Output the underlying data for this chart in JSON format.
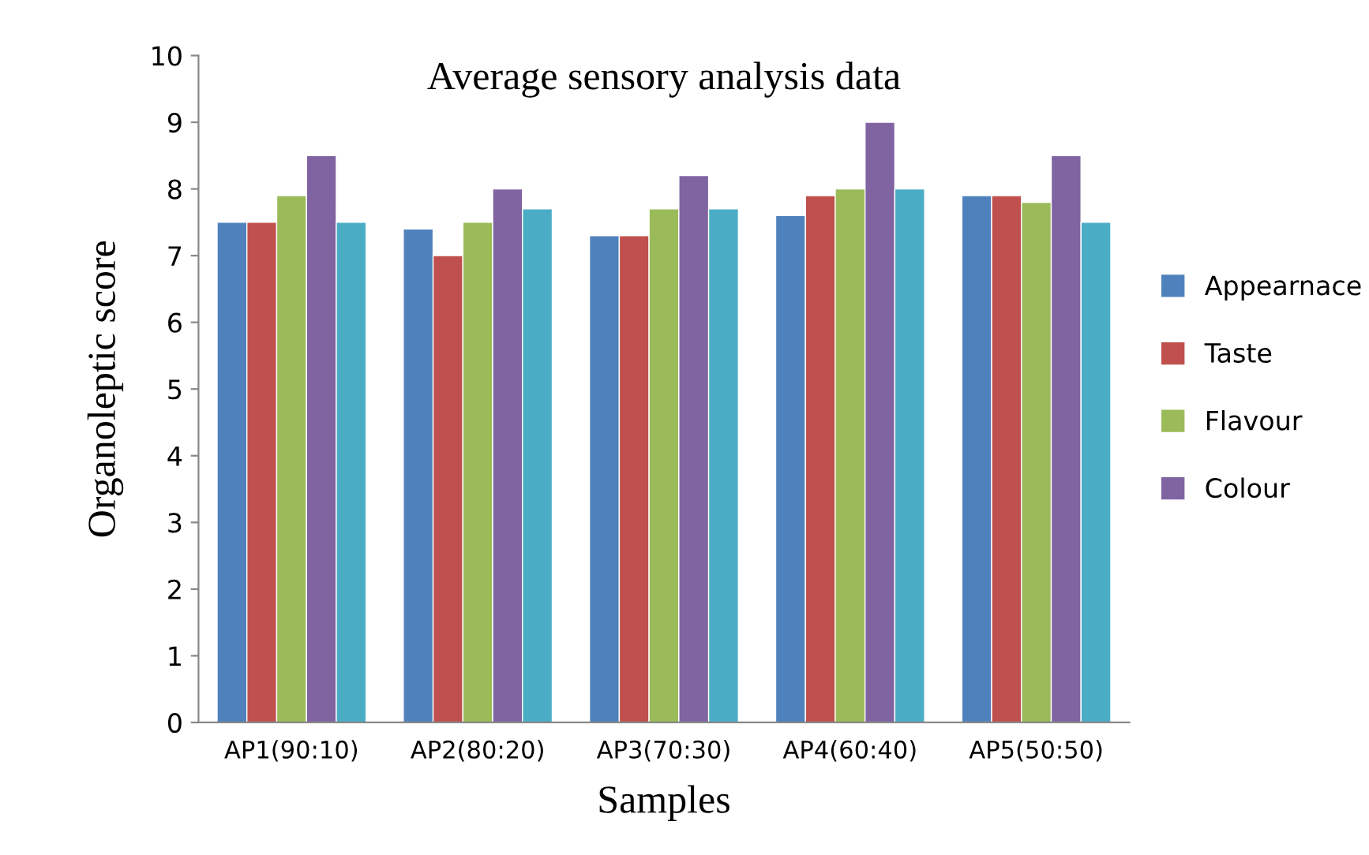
{
  "chart_data": {
    "type": "bar",
    "title": "Average sensory analysis data",
    "xlabel": "Samples",
    "ylabel": "Organoleptic score",
    "categories": [
      "AP1(90:10)",
      "AP2(80:20)",
      "AP3(70:30)",
      "AP4(60:40)",
      "AP5(50:50)"
    ],
    "series": [
      {
        "name": "Appearnace",
        "color": "#4f81bd",
        "values": [
          7.5,
          7.4,
          7.3,
          7.6,
          7.9
        ]
      },
      {
        "name": "Taste",
        "color": "#c0504d",
        "values": [
          7.5,
          7.0,
          7.3,
          7.9,
          7.9
        ]
      },
      {
        "name": "Flavour",
        "color": "#9bbb59",
        "values": [
          7.9,
          7.5,
          7.7,
          8.0,
          7.8
        ]
      },
      {
        "name": "Colour",
        "color": "#8064a2",
        "values": [
          8.5,
          8.0,
          8.2,
          9.0,
          8.5
        ]
      },
      {
        "color": "#4bacc6",
        "values": [
          7.5,
          7.7,
          7.7,
          8.0,
          7.5
        ]
      }
    ],
    "ylim": [
      0,
      10
    ],
    "yticks": [
      0,
      1,
      2,
      3,
      4,
      5,
      6,
      7,
      8,
      9,
      10
    ],
    "grid": false,
    "legend": "right"
  }
}
